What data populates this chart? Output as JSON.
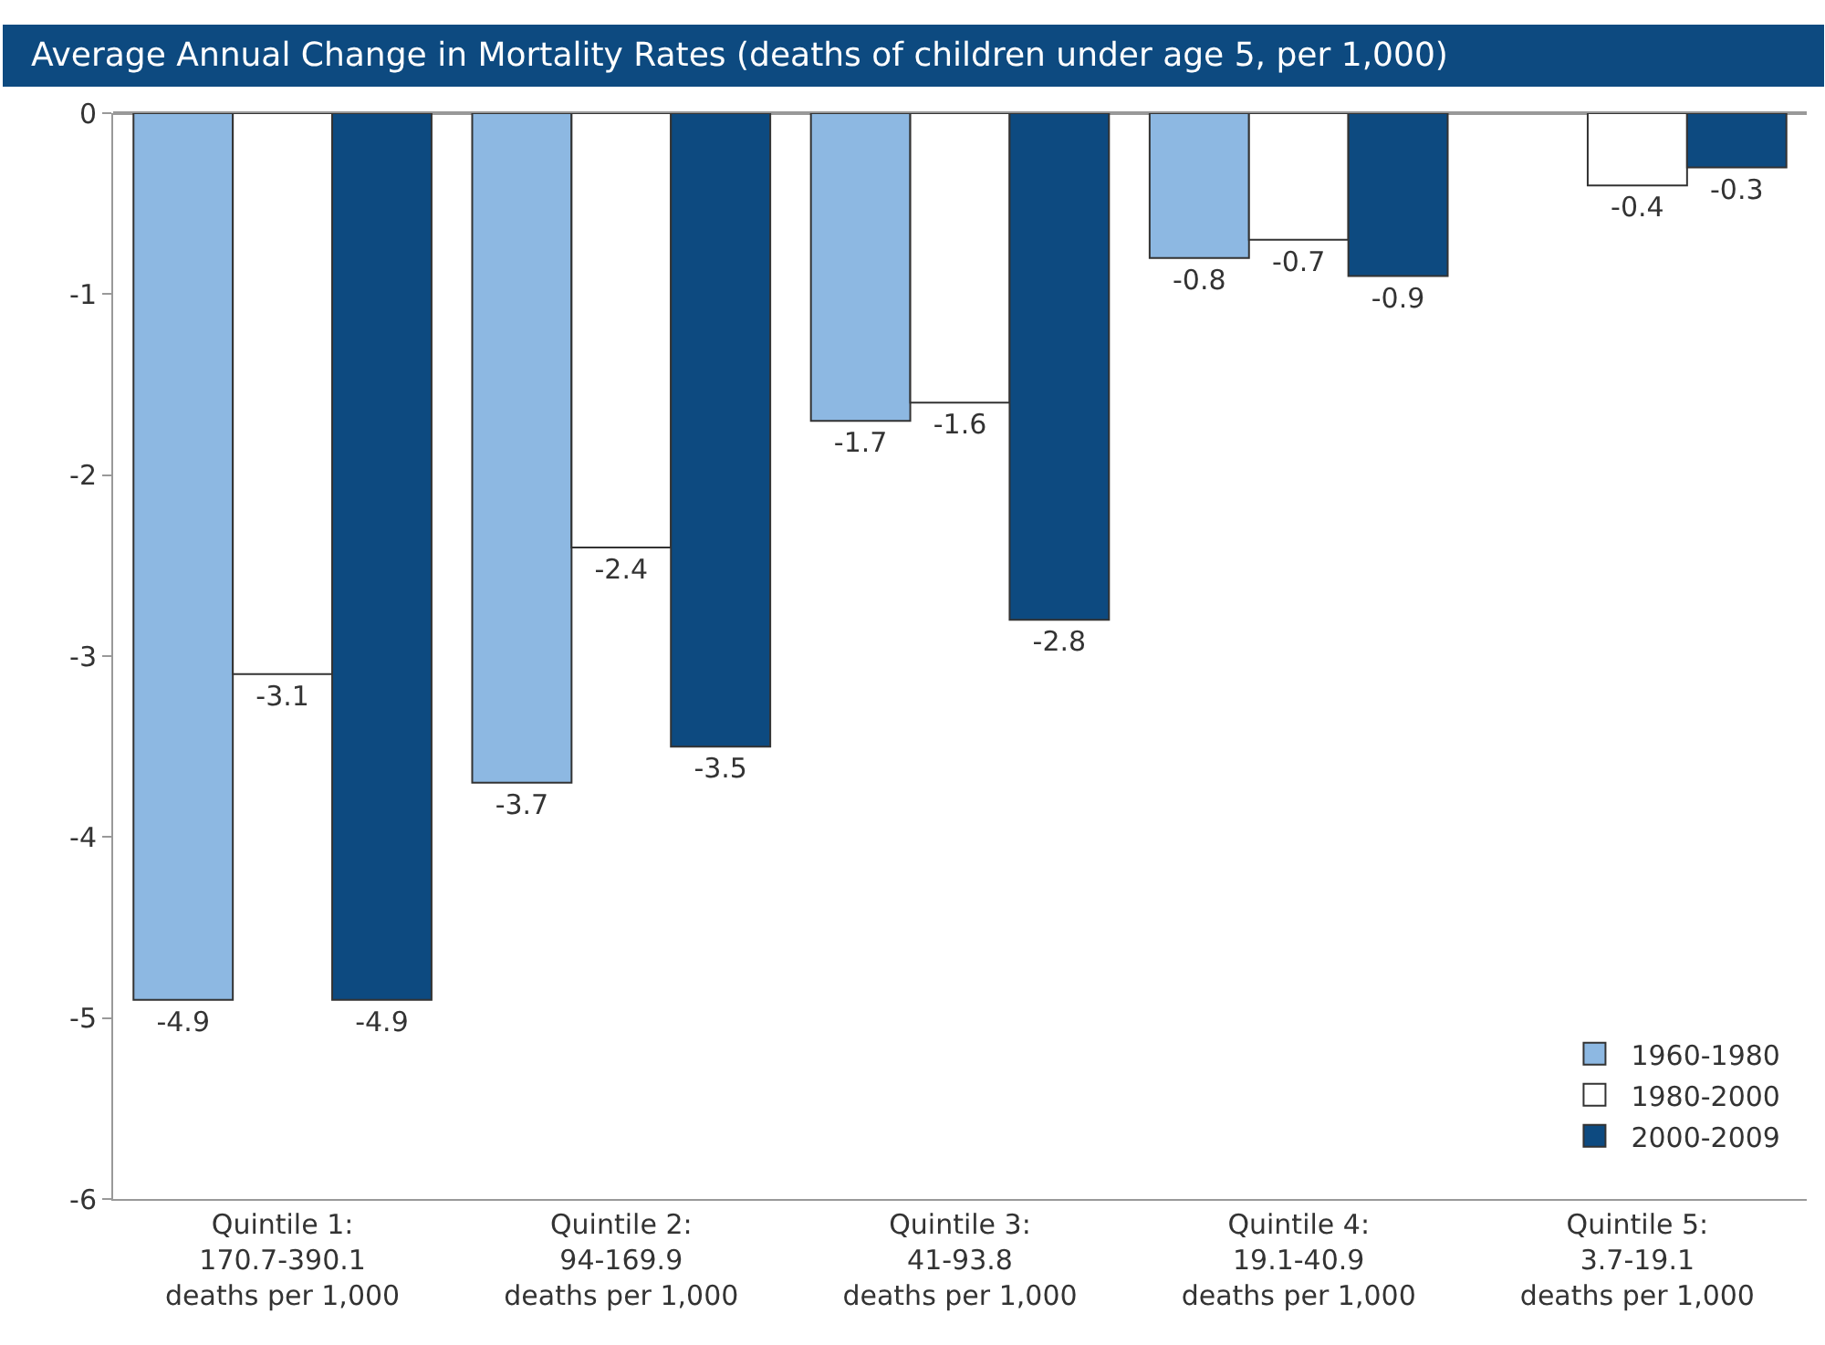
{
  "chart_data": {
    "type": "bar",
    "title": "Average Annual Change in Mortality Rates (deaths of children under age 5, per 1,000)",
    "categories": [
      "Quintile 1:\n170.7-390.1\ndeaths per 1,000",
      "Quintile 2:\n94-169.9\ndeaths per 1,000",
      "Quintile 3:\n41-93.8\ndeaths per 1,000",
      "Quintile 4:\n19.1-40.9\ndeaths per 1,000",
      "Quintile 5:\n3.7-19.1\ndeaths per 1,000"
    ],
    "series": [
      {
        "name": "1960-1980",
        "color": "#8db8e2",
        "values": [
          -4.9,
          -3.7,
          -1.7,
          -0.8,
          null
        ]
      },
      {
        "name": "1980-2000",
        "color": "#ffffff",
        "values": [
          -3.1,
          -2.4,
          -1.6,
          -0.7,
          -0.4
        ]
      },
      {
        "name": "2000-2009",
        "color": "#0d4a80",
        "values": [
          -4.9,
          -3.5,
          -2.8,
          -0.9,
          -0.3
        ]
      }
    ],
    "ylim": [
      -6,
      0
    ],
    "yticks": [
      -6,
      -5,
      -4,
      -3,
      -2,
      -1,
      0
    ],
    "data_labels": true,
    "legend": "bottom right"
  }
}
